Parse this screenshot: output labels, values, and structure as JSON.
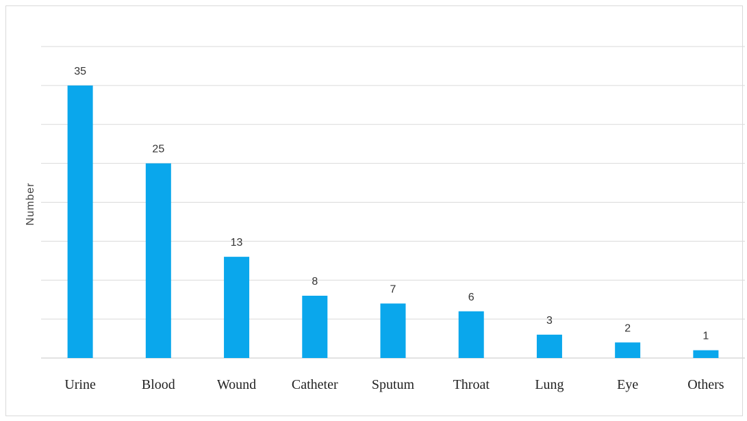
{
  "chart_data": {
    "type": "bar",
    "title": "",
    "xlabel": "",
    "ylabel": "Number",
    "categories": [
      "Urine",
      "Blood",
      "Wound",
      "Catheter",
      "Sputum",
      "Throat",
      "Lung",
      "Eye",
      "Others"
    ],
    "values": [
      35,
      25,
      13,
      8,
      7,
      6,
      3,
      2,
      1
    ],
    "ylim": [
      0,
      40
    ],
    "ytick_step": 5,
    "show_ytick_labels": false,
    "grid": "horizontal",
    "legend": "none",
    "bar_color": "#0aa7ec",
    "grid_color": "#d9d9d9"
  }
}
